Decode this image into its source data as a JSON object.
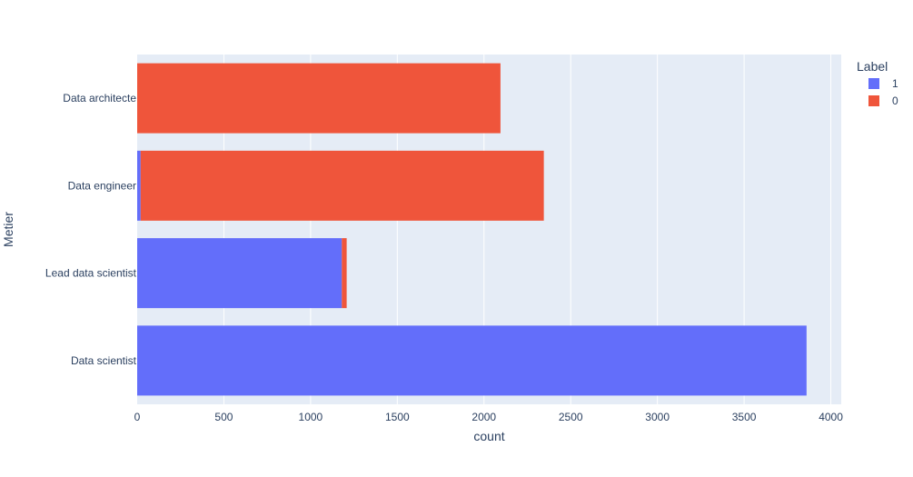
{
  "chart_data": {
    "type": "bar",
    "orientation": "horizontal",
    "barmode": "stack",
    "categories": [
      "Data architecte",
      "Data engineer",
      "Lead data scientist",
      "Data scientist"
    ],
    "series": [
      {
        "name": "1",
        "color": "#636efa",
        "values": [
          0,
          20,
          1180,
          3860
        ]
      },
      {
        "name": "0",
        "color": "#ef553b",
        "values": [
          2095,
          2325,
          28,
          0
        ]
      }
    ],
    "xlabel": "count",
    "ylabel": "Metier",
    "xlim": [
      0,
      4060
    ],
    "xticks": [
      0,
      500,
      1000,
      1500,
      2000,
      2500,
      3000,
      3500,
      4000
    ],
    "xtick_labels": [
      "0",
      "500",
      "1000",
      "1500",
      "2000",
      "2500",
      "3000",
      "3500",
      "4000"
    ],
    "grid": true,
    "legend": {
      "title": "Label",
      "position": "top-right"
    },
    "colors": {
      "plot_bg": "#e5ecf6",
      "grid": "#ffffff",
      "text": "#2a3f5f"
    }
  }
}
